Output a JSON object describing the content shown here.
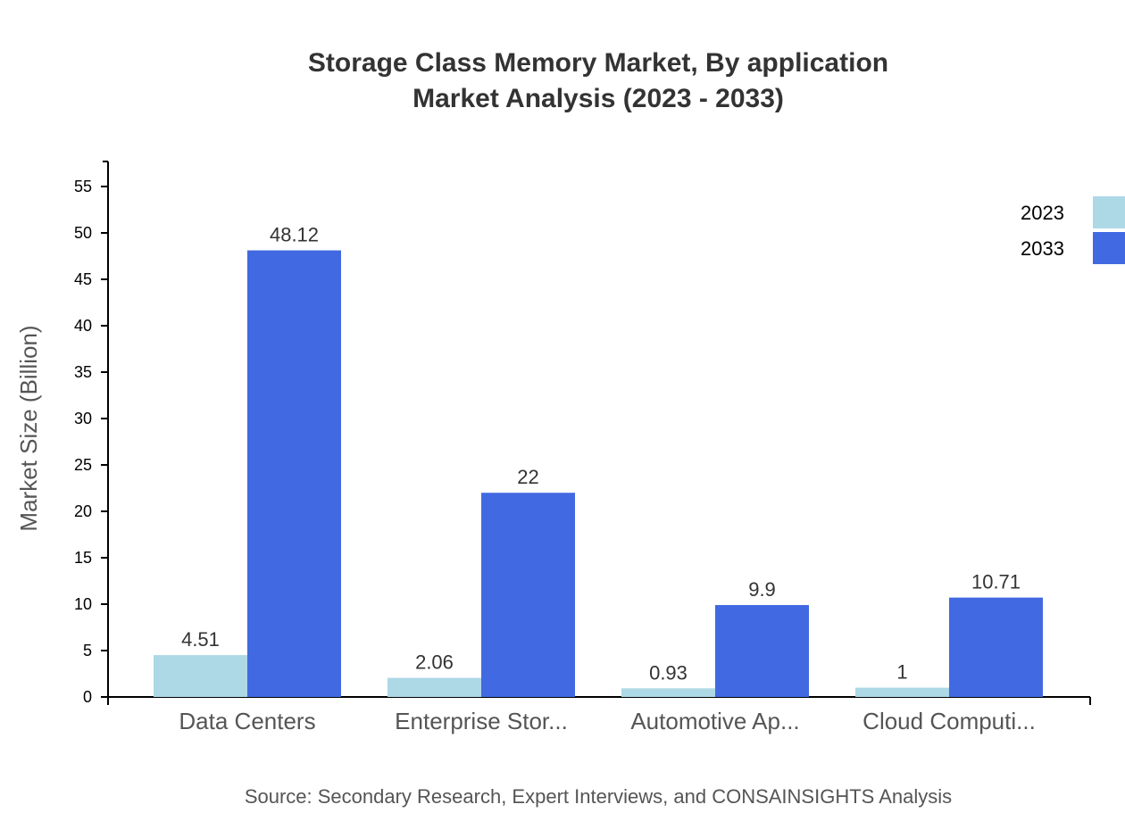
{
  "chart_data": {
    "type": "bar",
    "title": [
      "Storage Class Memory Market, By application",
      "Market Analysis (2023 - 2033)"
    ],
    "xlabel": "",
    "ylabel": "Market Size (Billion)",
    "ylim": [
      0,
      57.7
    ],
    "yticks": [
      0,
      5,
      10,
      15,
      20,
      25,
      30,
      35,
      40,
      45,
      50,
      55
    ],
    "categories": [
      "Data Centers",
      "Enterprise Stor...",
      "Automotive Ap...",
      "Cloud Computi..."
    ],
    "series": [
      {
        "name": "2023",
        "color": "#add8e6",
        "values": [
          4.51,
          2.06,
          0.93,
          1
        ],
        "labels": [
          "4.51",
          "2.06",
          "0.93",
          "1"
        ]
      },
      {
        "name": "2033",
        "color": "#4169e1",
        "values": [
          48.12,
          22,
          9.9,
          10.71
        ],
        "labels": [
          "48.12",
          "22",
          "9.9",
          "10.71"
        ]
      }
    ],
    "legend": "top-right",
    "grid": false
  },
  "source": "Source: Secondary Research, Expert Interviews, and CONSAINSIGHTS Analysis"
}
